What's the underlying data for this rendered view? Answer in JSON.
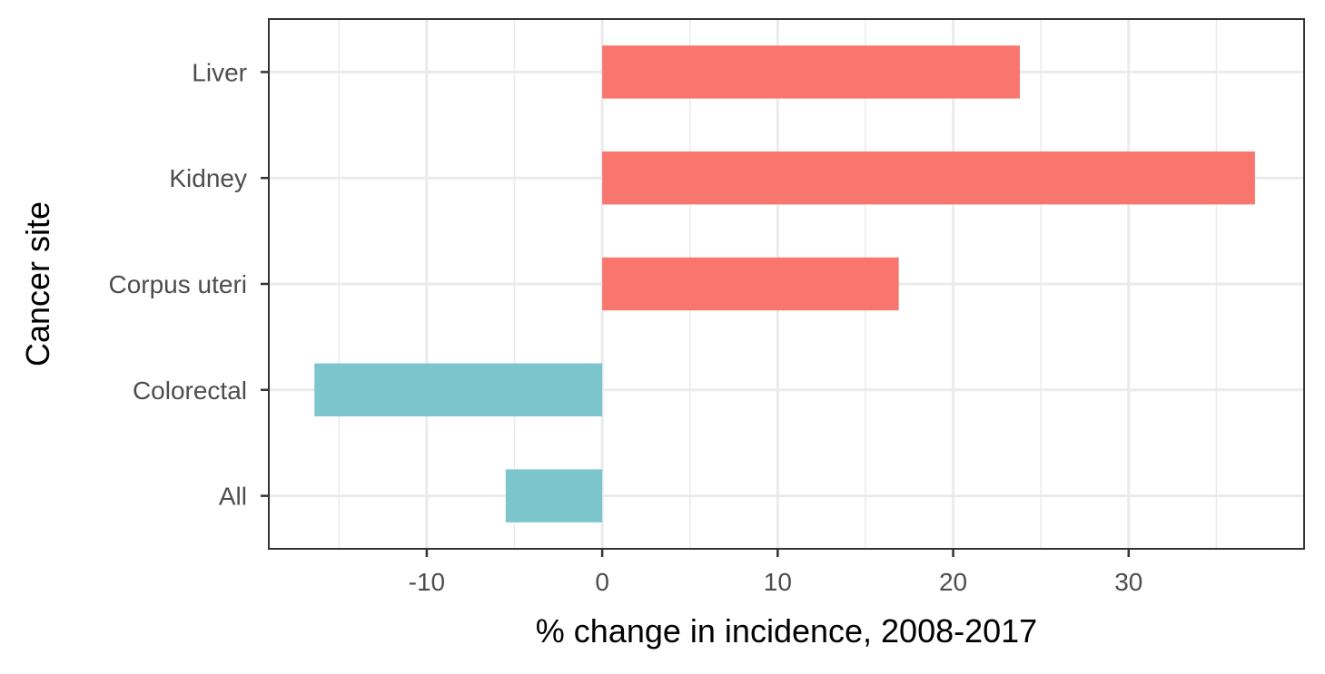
{
  "chart_data": {
    "type": "bar",
    "orientation": "horizontal",
    "title": "",
    "xlabel": "% change in incidence, 2008-2017",
    "ylabel": "Cancer site",
    "categories": [
      "All",
      "Colorectal",
      "Corpus uteri",
      "Kidney",
      "Liver"
    ],
    "values": [
      -5.5,
      -16.4,
      16.9,
      37.2,
      23.8
    ],
    "xlim": [
      -19,
      40
    ],
    "xticks": [
      -10,
      0,
      10,
      20,
      30
    ],
    "grid": true,
    "legend": "none",
    "colors": {
      "positive": "#F8766D",
      "negative": "#7CC5CD",
      "grid": "#ebebeb",
      "panel_border": "#333333"
    }
  }
}
